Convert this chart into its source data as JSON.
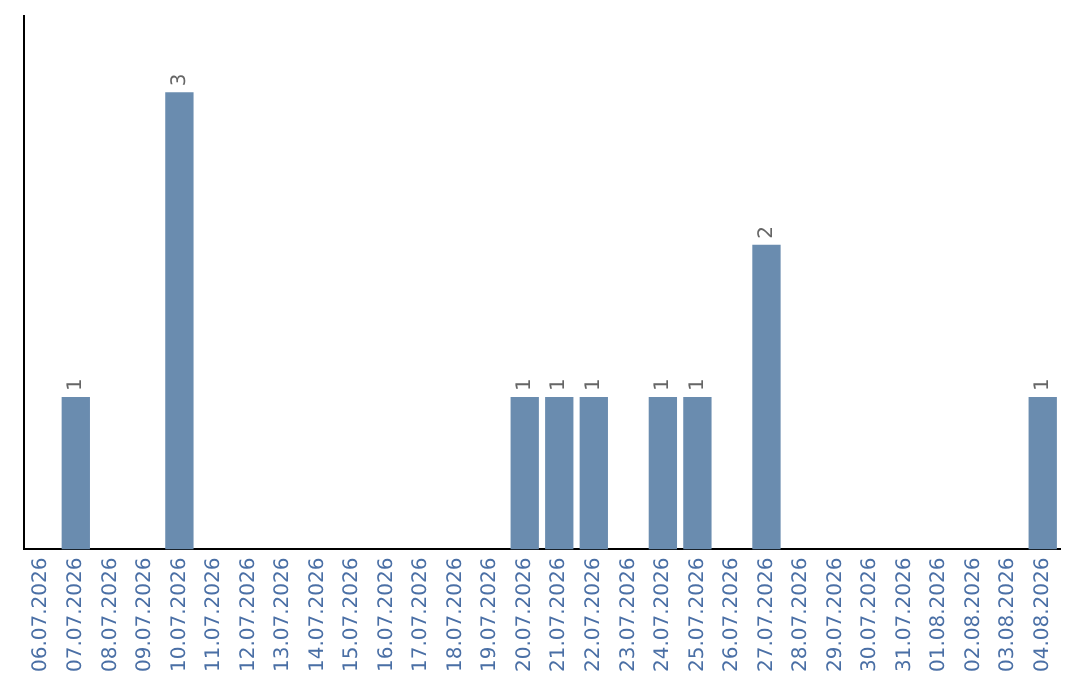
{
  "chart_data": {
    "type": "bar",
    "categories": [
      "06.07.2026",
      "07.07.2026",
      "08.07.2026",
      "09.07.2026",
      "10.07.2026",
      "11.07.2026",
      "12.07.2026",
      "13.07.2026",
      "14.07.2026",
      "15.07.2026",
      "16.07.2026",
      "17.07.2026",
      "18.07.2026",
      "19.07.2026",
      "20.07.2026",
      "21.07.2026",
      "22.07.2026",
      "23.07.2026",
      "24.07.2026",
      "25.07.2026",
      "26.07.2026",
      "27.07.2026",
      "28.07.2026",
      "29.07.2026",
      "30.07.2026",
      "31.07.2026",
      "01.08.2026",
      "02.08.2026",
      "03.08.2026",
      "04.08.2026"
    ],
    "values": [
      0,
      1,
      0,
      0,
      3,
      0,
      0,
      0,
      0,
      0,
      0,
      0,
      0,
      0,
      1,
      1,
      1,
      0,
      1,
      1,
      0,
      2,
      0,
      0,
      0,
      0,
      0,
      0,
      0,
      1
    ],
    "value_labels": [
      null,
      "1",
      null,
      null,
      "3",
      null,
      null,
      null,
      null,
      null,
      null,
      null,
      null,
      null,
      "1",
      "1",
      "1",
      null,
      "1",
      "1",
      null,
      "2",
      null,
      null,
      null,
      null,
      null,
      null,
      null,
      "1"
    ],
    "color": "#6a8caf",
    "grid": false,
    "legend": false
  }
}
